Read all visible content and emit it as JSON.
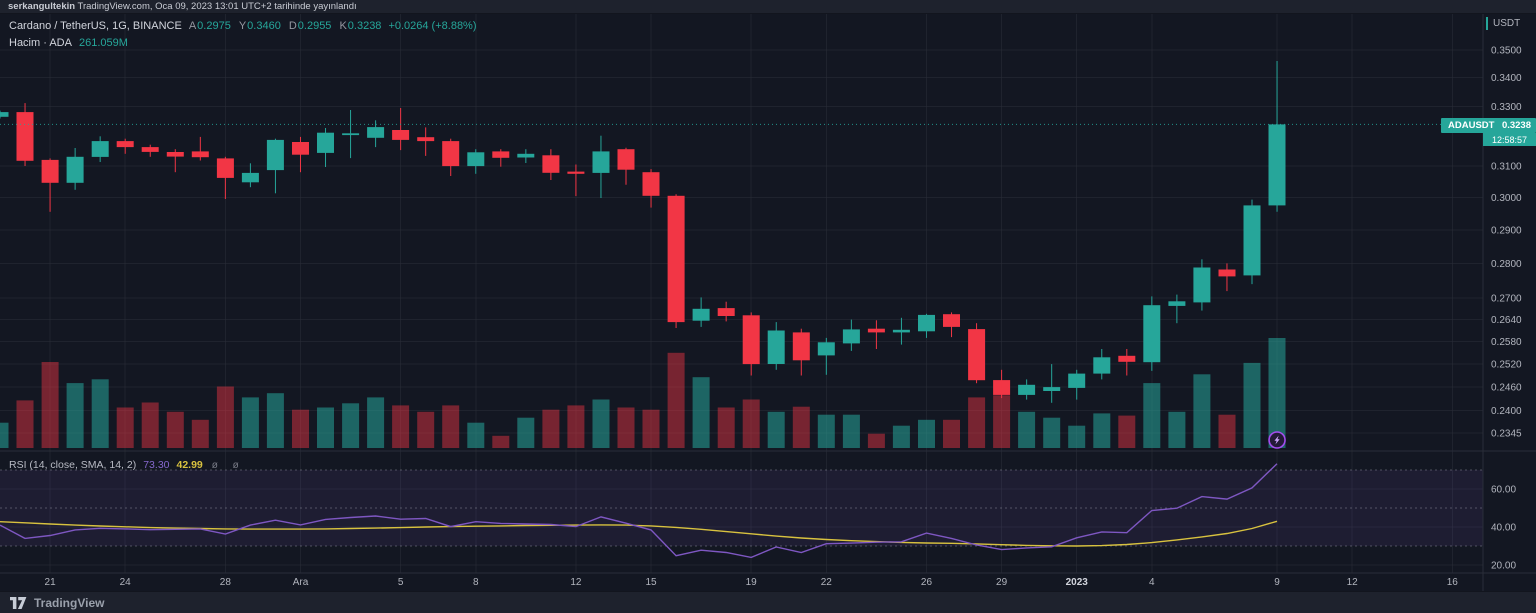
{
  "publish_bar": {
    "user": "serkangultekin",
    "rest": " TradingView.com, Oca 09, 2023 13:01 UTC+2 tarihinde yayınlandı"
  },
  "legend": {
    "title": "Cardano / TetherUS, 1G, BINANCE",
    "ohlc": [
      {
        "k": "A",
        "v": "0.2975"
      },
      {
        "k": "Y",
        "v": "0.3460"
      },
      {
        "k": "D",
        "v": "0.2955"
      },
      {
        "k": "K",
        "v": "0.3238"
      }
    ],
    "change": "+0.0264 (+8.88%)",
    "volume_label": "Hacim · ADA",
    "volume_value": "261.059M"
  },
  "rsi_legend": {
    "title": "RSI (14, close, SMA, 14, 2)",
    "rsi_value": "73.30",
    "ma_value": "42.99",
    "icons": "ø ø"
  },
  "price_axis": {
    "currency": "USDT",
    "tag": {
      "symbol": "ADAUSDT",
      "price": "0.3238",
      "countdown": "12:58:57"
    }
  },
  "footer": {
    "brand": "TradingView"
  },
  "colors": {
    "background": "#131722",
    "panel": "#1e222d",
    "grid": "rgba(42,46,57,0.55)",
    "divider": "#2a2e39",
    "axis_text": "#b2b5be",
    "axis_text_bright": "#d1d4dc",
    "up": "#26a69a",
    "down": "#f23645",
    "volume_up": "rgba(38,166,154,0.55)",
    "volume_down": "rgba(242,54,69,0.45)",
    "rsi_line": "#7e57c2",
    "rsi_ma_line": "#d8c23f",
    "rsi_band_fill": "rgba(126,87,194,0.10)",
    "rsi_band_line": "rgba(165,168,180,0.40)",
    "price_line": "#26a69a",
    "badge": "#a44df0"
  },
  "chart_data": {
    "type": "candlestick+volume+rsi",
    "title": "Cardano / TetherUS",
    "symbol": "ADAUSDT",
    "exchange": "BINANCE",
    "interval": "1G",
    "last_bar": {
      "open": 0.2975,
      "high": 0.346,
      "low": 0.2955,
      "close": 0.3238,
      "change": "+0.0264",
      "change_pct": "+8.88%"
    },
    "current_price": 0.3238,
    "countdown": "12:58:57",
    "last_volume_label": "261.059M",
    "rsi_last": 73.3,
    "rsi_ma_last": 42.99,
    "candles": [
      [
        0.3264,
        0.3285,
        0.3258,
        0.328
      ],
      [
        0.328,
        0.3311,
        0.31,
        0.3117
      ],
      [
        0.312,
        0.3125,
        0.2955,
        0.3046
      ],
      [
        0.3046,
        0.3159,
        0.3024,
        0.313
      ],
      [
        0.313,
        0.3198,
        0.3113,
        0.3182
      ],
      [
        0.3182,
        0.319,
        0.314,
        0.3162
      ],
      [
        0.3162,
        0.317,
        0.313,
        0.3146
      ],
      [
        0.3146,
        0.3155,
        0.308,
        0.3131
      ],
      [
        0.3148,
        0.3196,
        0.3118,
        0.3129
      ],
      [
        0.3125,
        0.313,
        0.2995,
        0.3062
      ],
      [
        0.3048,
        0.3109,
        0.3032,
        0.3078
      ],
      [
        0.3087,
        0.319,
        0.3013,
        0.3186
      ],
      [
        0.3179,
        0.3196,
        0.308,
        0.3137
      ],
      [
        0.3143,
        0.3226,
        0.3097,
        0.321
      ],
      [
        0.3202,
        0.3287,
        0.3126,
        0.3208
      ],
      [
        0.3193,
        0.3252,
        0.3162,
        0.3229
      ],
      [
        0.3219,
        0.3294,
        0.3152,
        0.3186
      ],
      [
        0.3195,
        0.3228,
        0.3133,
        0.3182
      ],
      [
        0.3182,
        0.319,
        0.3068,
        0.31
      ],
      [
        0.31,
        0.3155,
        0.3075,
        0.3145
      ],
      [
        0.3148,
        0.3155,
        0.3098,
        0.3127
      ],
      [
        0.3128,
        0.3155,
        0.311,
        0.314
      ],
      [
        0.3135,
        0.3155,
        0.3055,
        0.3078
      ],
      [
        0.3082,
        0.3105,
        0.3004,
        0.3075
      ],
      [
        0.3078,
        0.32,
        0.2998,
        0.3148
      ],
      [
        0.3155,
        0.316,
        0.304,
        0.3088
      ],
      [
        0.308,
        0.309,
        0.2968,
        0.3005
      ],
      [
        0.3005,
        0.301,
        0.2617,
        0.2633
      ],
      [
        0.2637,
        0.2702,
        0.262,
        0.267
      ],
      [
        0.2672,
        0.269,
        0.2635,
        0.265
      ],
      [
        0.2652,
        0.266,
        0.249,
        0.252
      ],
      [
        0.252,
        0.2633,
        0.2505,
        0.261
      ],
      [
        0.2605,
        0.2615,
        0.249,
        0.253
      ],
      [
        0.2543,
        0.259,
        0.2492,
        0.2578
      ],
      [
        0.2575,
        0.264,
        0.2555,
        0.2613
      ],
      [
        0.2615,
        0.2638,
        0.256,
        0.2605
      ],
      [
        0.2605,
        0.2645,
        0.2572,
        0.2612
      ],
      [
        0.2608,
        0.2656,
        0.259,
        0.2653
      ],
      [
        0.2655,
        0.266,
        0.2592,
        0.262
      ],
      [
        0.2614,
        0.263,
        0.247,
        0.2478
      ],
      [
        0.2478,
        0.2505,
        0.2432,
        0.244
      ],
      [
        0.244,
        0.248,
        0.2428,
        0.2466
      ],
      [
        0.245,
        0.252,
        0.242,
        0.246
      ],
      [
        0.2458,
        0.2505,
        0.2428,
        0.2495
      ],
      [
        0.2495,
        0.256,
        0.248,
        0.2538
      ],
      [
        0.2542,
        0.256,
        0.249,
        0.2526
      ],
      [
        0.2525,
        0.2705,
        0.2502,
        0.268
      ],
      [
        0.2678,
        0.271,
        0.263,
        0.2691
      ],
      [
        0.2688,
        0.2812,
        0.2665,
        0.2788
      ],
      [
        0.2782,
        0.28,
        0.272,
        0.2762
      ],
      [
        0.2765,
        0.2993,
        0.274,
        0.2975
      ],
      [
        0.2975,
        0.346,
        0.2955,
        0.3238
      ]
    ],
    "volumes_m": [
      60,
      113,
      204,
      154,
      163,
      96,
      108,
      86,
      67,
      146,
      120,
      130,
      91,
      96,
      106,
      120,
      101,
      86,
      101,
      60,
      29,
      72,
      91,
      101,
      115,
      96,
      91,
      226,
      168,
      96,
      115,
      86,
      98,
      79,
      79,
      34,
      53,
      67,
      67,
      120,
      125,
      86,
      72,
      53,
      82,
      77,
      154,
      86,
      175,
      79,
      202,
      261.059
    ],
    "rsi": [
      41.0,
      34.0,
      35.5,
      38.5,
      39.3,
      39.0,
      38.6,
      38.8,
      39.0,
      36.3,
      41.0,
      43.6,
      41.1,
      44.0,
      45.0,
      45.8,
      44.1,
      44.5,
      40.2,
      42.8,
      41.9,
      41.6,
      41.3,
      40.2,
      45.3,
      42.0,
      38.5,
      24.9,
      27.8,
      26.6,
      24.0,
      29.5,
      26.6,
      31.2,
      31.5,
      32.0,
      32.2,
      36.8,
      34.0,
      30.5,
      28.1,
      29.0,
      29.6,
      34.3,
      37.4,
      37.0,
      48.7,
      49.9,
      56.0,
      54.7,
      60.6,
      73.3
    ],
    "rsi_sma": [
      42.8,
      42.2,
      41.6,
      41.0,
      40.5,
      40.1,
      39.7,
      39.4,
      39.2,
      39.0,
      38.9,
      38.9,
      38.9,
      39.0,
      39.2,
      39.4,
      39.7,
      40.0,
      40.2,
      40.4,
      40.6,
      40.8,
      40.9,
      41.0,
      41.1,
      41.0,
      40.6,
      39.8,
      38.8,
      37.6,
      36.4,
      35.2,
      34.2,
      33.4,
      32.8,
      32.3,
      31.9,
      31.6,
      31.4,
      31.1,
      30.7,
      30.3,
      30.1,
      30.0,
      30.2,
      30.8,
      31.8,
      33.2,
      34.8,
      36.6,
      39.2,
      43.0
    ],
    "rsi_levels": {
      "upper": 70,
      "middle": 50,
      "lower": 30
    },
    "price_ticks": [
      {
        "v": 0.35,
        "t": "0.3500"
      },
      {
        "v": 0.34,
        "t": "0.3400"
      },
      {
        "v": 0.33,
        "t": "0.3300"
      },
      {
        "v": 0.31,
        "t": "0.3100"
      },
      {
        "v": 0.3,
        "t": "0.3000"
      },
      {
        "v": 0.29,
        "t": "0.2900"
      },
      {
        "v": 0.28,
        "t": "0.2800"
      },
      {
        "v": 0.27,
        "t": "0.2700"
      },
      {
        "v": 0.264,
        "t": "0.2640"
      },
      {
        "v": 0.258,
        "t": "0.2580"
      },
      {
        "v": 0.252,
        "t": "0.2520"
      },
      {
        "v": 0.246,
        "t": "0.2460"
      },
      {
        "v": 0.24,
        "t": "0.2400"
      },
      {
        "v": 0.2345,
        "t": "0.2345"
      }
    ],
    "rsi_ticks": [
      {
        "v": 60,
        "t": "60.00"
      },
      {
        "v": 40,
        "t": "40.00"
      },
      {
        "v": 20,
        "t": "20.00"
      }
    ],
    "time_ticks": [
      {
        "i": 2,
        "t": "21"
      },
      {
        "i": 5,
        "t": "24"
      },
      {
        "i": 9,
        "t": "28"
      },
      {
        "i": 12,
        "t": "Ara"
      },
      {
        "i": 16,
        "t": "5"
      },
      {
        "i": 19,
        "t": "8"
      },
      {
        "i": 23,
        "t": "12"
      },
      {
        "i": 26,
        "t": "15"
      },
      {
        "i": 30,
        "t": "19"
      },
      {
        "i": 33,
        "t": "22"
      },
      {
        "i": 37,
        "t": "26"
      },
      {
        "i": 40,
        "t": "29"
      },
      {
        "i": 43,
        "t": "2023",
        "bold": true
      },
      {
        "i": 46,
        "t": "4"
      },
      {
        "i": 51,
        "t": "9"
      },
      {
        "i": 54,
        "t": "12"
      },
      {
        "i": 58,
        "t": "16"
      }
    ],
    "grid": true,
    "legend_position": "top-left"
  }
}
